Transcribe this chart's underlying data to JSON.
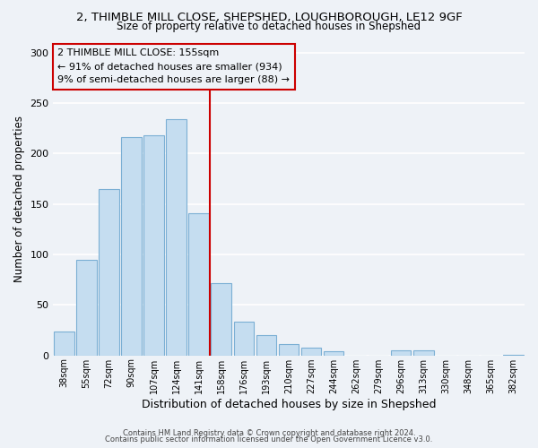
{
  "title_line1": "2, THIMBLE MILL CLOSE, SHEPSHED, LOUGHBOROUGH, LE12 9GF",
  "title_line2": "Size of property relative to detached houses in Shepshed",
  "xlabel": "Distribution of detached houses by size in Shepshed",
  "ylabel": "Number of detached properties",
  "bar_labels": [
    "38sqm",
    "55sqm",
    "72sqm",
    "90sqm",
    "107sqm",
    "124sqm",
    "141sqm",
    "158sqm",
    "176sqm",
    "193sqm",
    "210sqm",
    "227sqm",
    "244sqm",
    "262sqm",
    "279sqm",
    "296sqm",
    "313sqm",
    "330sqm",
    "348sqm",
    "365sqm",
    "382sqm"
  ],
  "bar_values": [
    24,
    95,
    165,
    216,
    218,
    234,
    141,
    72,
    33,
    20,
    11,
    8,
    4,
    0,
    0,
    5,
    5,
    0,
    0,
    0,
    1
  ],
  "bar_color": "#c5ddf0",
  "bar_edge_color": "#7bafd4",
  "annotation_title": "2 THIMBLE MILL CLOSE: 155sqm",
  "annotation_line1": "← 91% of detached houses are smaller (934)",
  "annotation_line2": "9% of semi-detached houses are larger (88) →",
  "vline_color": "#cc0000",
  "vline_x": 7.5,
  "annotation_box_edge_color": "#cc0000",
  "ylim": [
    0,
    310
  ],
  "yticks": [
    0,
    50,
    100,
    150,
    200,
    250,
    300
  ],
  "footer_line1": "Contains HM Land Registry data © Crown copyright and database right 2024.",
  "footer_line2": "Contains public sector information licensed under the Open Government Licence v3.0.",
  "background_color": "#eef2f7"
}
